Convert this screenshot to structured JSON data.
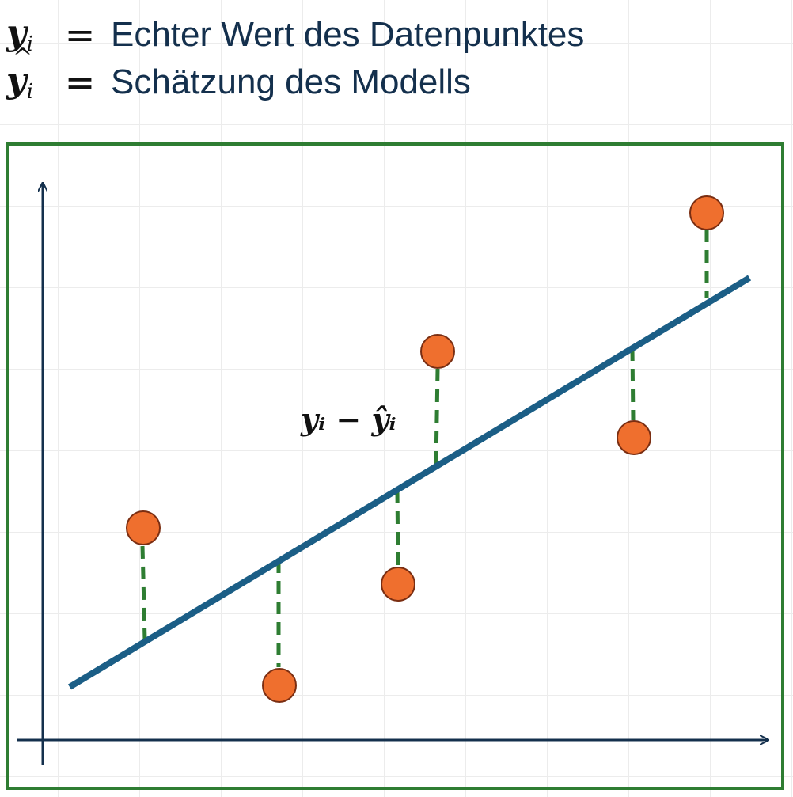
{
  "legend": {
    "actual": {
      "symbol": "y",
      "subscript": "i",
      "equals": "=",
      "text": "Echter Wert des Datenpunktes"
    },
    "estimate": {
      "symbol": "y",
      "hat": "^",
      "subscript": "i",
      "equals": "=",
      "text": "Schätzung des Modells"
    }
  },
  "annotation": {
    "residual_label": "yᵢ − ŷᵢ"
  },
  "colors": {
    "frame": "#2e7d32",
    "regression_line": "#1b5e86",
    "data_point_fill": "#ef6f2e",
    "data_point_stroke": "#7a2e12",
    "residual": "#2e7d32",
    "axes": "#14304d"
  }
}
